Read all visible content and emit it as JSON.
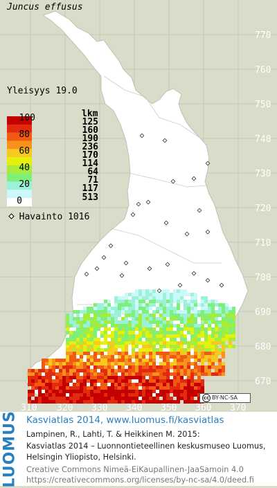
{
  "species": "Juncus effusus",
  "frequency_label": "Yleisyys  19.0",
  "legend": {
    "pct_labels": [
      "100",
      "80",
      "60",
      "40",
      "20",
      "0"
    ],
    "lkm_header": "lkm",
    "lkm_values": [
      "125",
      "160",
      "190",
      "236",
      "170",
      "114",
      "64",
      "71",
      "117",
      "513"
    ],
    "colors": [
      "#c40000",
      "#e12a0e",
      "#f25a14",
      "#f7921c",
      "#f7c81e",
      "#e6f00e",
      "#a8ec3a",
      "#7ef07a",
      "#9cf2d6",
      "#cbf8fa",
      "#ffffff"
    ]
  },
  "observation_label": "Havainto 1016",
  "right_axis_ticks": [
    "770",
    "760",
    "750",
    "740",
    "730",
    "720",
    "710",
    "700",
    "690",
    "680",
    "670"
  ],
  "bottom_axis_ticks": [
    "310",
    "320",
    "330",
    "340",
    "350",
    "360",
    "370"
  ],
  "cc_badge": "BY-NC-SA",
  "brand": "LUOMUS",
  "footer": {
    "atlas": "Kasviatlas 2014, www.luomus.fi/kasviatlas",
    "citation_1": "Lampinen, R., Lahti, T. & Heikkinen M. 2015:",
    "citation_2": "Kasviatlas 2014 – Luonnontieteellinen keskusmuseo Luomus,",
    "citation_3": "Helsingin Yliopisto, Helsinki.",
    "license_1": "Creative Commons Nimeä-EiKaupallinen-JaaSamoin 4.0",
    "license_2": "https://creativecommons.org/licenses/by-nc-sa/4.0/deed.fi"
  }
}
